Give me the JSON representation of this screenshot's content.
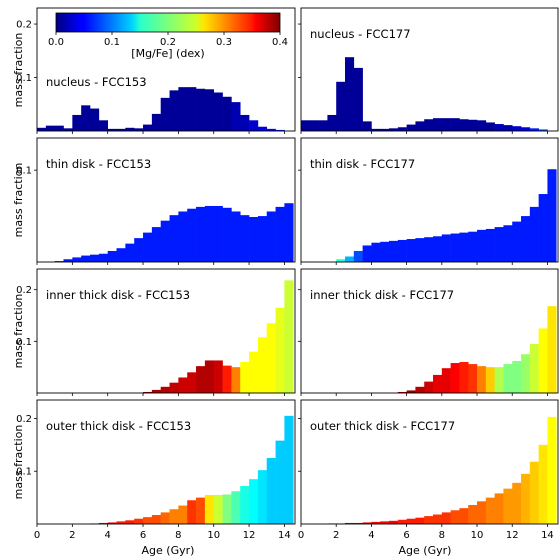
{
  "figure": {
    "colorbar": {
      "label": "[Mg/Fe] (dex)",
      "ticks": [
        "0.0",
        "0.1",
        "0.2",
        "0.3",
        "0.4"
      ],
      "range": [
        0.0,
        0.4
      ],
      "colormap": "jet"
    },
    "x_axis": {
      "label": "Age (Gyr)",
      "ticks": [
        "0",
        "2",
        "4",
        "6",
        "8",
        "10",
        "12",
        "14"
      ],
      "range": [
        0,
        14.6
      ]
    },
    "y_axis_label": "mass fraction"
  },
  "chart_data": [
    {
      "type": "bar",
      "title": "nucleus - FCC153",
      "xlim": [
        0,
        14.6
      ],
      "ylim": [
        0,
        0.23
      ],
      "yticks": [
        "0.1",
        "0.2"
      ],
      "ytick_values": [
        0.1,
        0.2
      ],
      "bin_width": 0.5,
      "x": [
        0.25,
        0.75,
        1.25,
        1.75,
        2.25,
        2.75,
        3.25,
        3.75,
        4.25,
        4.75,
        5.25,
        5.75,
        6.25,
        6.75,
        7.25,
        7.75,
        8.25,
        8.75,
        9.25,
        9.75,
        10.25,
        10.75,
        11.25,
        11.75,
        12.25,
        12.75,
        13.25,
        13.75
      ],
      "values": [
        0.006,
        0.01,
        0.01,
        0.005,
        0.03,
        0.048,
        0.042,
        0.02,
        0.004,
        0.004,
        0.006,
        0.005,
        0.012,
        0.032,
        0.062,
        0.076,
        0.082,
        0.082,
        0.079,
        0.078,
        0.072,
        0.064,
        0.054,
        0.03,
        0.02,
        0.008,
        0.004,
        0.002
      ],
      "mgfe": [
        0.01,
        0.01,
        0.01,
        0.01,
        0.01,
        0.01,
        0.01,
        0.01,
        0.01,
        0.01,
        0.01,
        0.01,
        0.01,
        0.01,
        0.01,
        0.01,
        0.01,
        0.01,
        0.01,
        0.01,
        0.01,
        0.01,
        0.02,
        0.02,
        0.03,
        0.04,
        0.05,
        0.06
      ]
    },
    {
      "type": "bar",
      "title": "nucleus - FCC177",
      "xlim": [
        0,
        14.6
      ],
      "ylim": [
        0,
        0.23
      ],
      "yticks": [],
      "ytick_values": [
        0.1,
        0.2
      ],
      "bin_width": 0.5,
      "x": [
        0.25,
        0.75,
        1.25,
        1.75,
        2.25,
        2.75,
        3.25,
        3.75,
        4.25,
        4.75,
        5.25,
        5.75,
        6.25,
        6.75,
        7.25,
        7.75,
        8.25,
        8.75,
        9.25,
        9.75,
        10.25,
        10.75,
        11.25,
        11.75,
        12.25,
        12.75,
        13.25,
        13.75
      ],
      "values": [
        0.02,
        0.02,
        0.02,
        0.03,
        0.092,
        0.138,
        0.118,
        0.018,
        0.004,
        0.004,
        0.005,
        0.007,
        0.012,
        0.018,
        0.022,
        0.024,
        0.024,
        0.024,
        0.022,
        0.021,
        0.02,
        0.016,
        0.013,
        0.011,
        0.009,
        0.007,
        0.005,
        0.003
      ],
      "mgfe": [
        0.01,
        0.01,
        0.01,
        0.01,
        0.01,
        0.01,
        0.01,
        0.01,
        0.01,
        0.01,
        0.01,
        0.01,
        0.01,
        0.01,
        0.01,
        0.01,
        0.01,
        0.01,
        0.01,
        0.01,
        0.01,
        0.01,
        0.02,
        0.02,
        0.03,
        0.04,
        0.06,
        0.08
      ]
    },
    {
      "type": "bar",
      "title": "thin disk - FCC153",
      "xlim": [
        0,
        14.6
      ],
      "ylim": [
        0,
        0.135
      ],
      "yticks": [
        "0.1"
      ],
      "ytick_values": [
        0.1
      ],
      "bin_width": 0.5,
      "x": [
        0.25,
        0.75,
        1.25,
        1.75,
        2.25,
        2.75,
        3.25,
        3.75,
        4.25,
        4.75,
        5.25,
        5.75,
        6.25,
        6.75,
        7.25,
        7.75,
        8.25,
        8.75,
        9.25,
        9.75,
        10.25,
        10.75,
        11.25,
        11.75,
        12.25,
        12.75,
        13.25,
        13.75,
        14.25
      ],
      "values": [
        0,
        0,
        0.001,
        0.003,
        0.005,
        0.007,
        0.008,
        0.009,
        0.012,
        0.015,
        0.02,
        0.026,
        0.032,
        0.038,
        0.045,
        0.051,
        0.055,
        0.058,
        0.06,
        0.061,
        0.061,
        0.059,
        0.055,
        0.051,
        0.049,
        0.05,
        0.055,
        0.06,
        0.064
      ],
      "mgfe": [
        0.06,
        0.06,
        0.06,
        0.06,
        0.06,
        0.06,
        0.06,
        0.06,
        0.06,
        0.06,
        0.06,
        0.06,
        0.06,
        0.06,
        0.06,
        0.06,
        0.06,
        0.06,
        0.06,
        0.06,
        0.06,
        0.06,
        0.06,
        0.06,
        0.06,
        0.06,
        0.06,
        0.06,
        0.06
      ]
    },
    {
      "type": "bar",
      "title": "thin disk - FCC177",
      "xlim": [
        0,
        14.6
      ],
      "ylim": [
        0,
        0.135
      ],
      "yticks": [],
      "ytick_values": [
        0.1
      ],
      "bin_width": 0.5,
      "x": [
        2.25,
        2.75,
        3.25,
        3.75,
        4.25,
        4.75,
        5.25,
        5.75,
        6.25,
        6.75,
        7.25,
        7.75,
        8.25,
        8.75,
        9.25,
        9.75,
        10.25,
        10.75,
        11.25,
        11.75,
        12.25,
        12.75,
        13.25,
        13.75,
        14.25
      ],
      "values": [
        0.003,
        0.006,
        0.012,
        0.018,
        0.021,
        0.022,
        0.023,
        0.024,
        0.025,
        0.026,
        0.027,
        0.028,
        0.03,
        0.031,
        0.032,
        0.033,
        0.035,
        0.036,
        0.038,
        0.04,
        0.044,
        0.05,
        0.06,
        0.074,
        0.101
      ],
      "mgfe": [
        0.16,
        0.12,
        0.08,
        0.06,
        0.06,
        0.06,
        0.06,
        0.06,
        0.06,
        0.06,
        0.06,
        0.06,
        0.06,
        0.06,
        0.06,
        0.06,
        0.06,
        0.06,
        0.06,
        0.06,
        0.06,
        0.06,
        0.06,
        0.06,
        0.06
      ]
    },
    {
      "type": "bar",
      "title": "inner thick disk - FCC153",
      "xlim": [
        0,
        14.6
      ],
      "ylim": [
        0,
        0.24
      ],
      "yticks": [
        "0.1",
        "0.2"
      ],
      "ytick_values": [
        0.1,
        0.2
      ],
      "bin_width": 0.5,
      "x": [
        6.25,
        6.75,
        7.25,
        7.75,
        8.25,
        8.75,
        9.25,
        9.75,
        10.25,
        10.75,
        11.25,
        11.75,
        12.25,
        12.75,
        13.25,
        13.75,
        14.25
      ],
      "values": [
        0.002,
        0.006,
        0.012,
        0.02,
        0.03,
        0.04,
        0.052,
        0.063,
        0.063,
        0.053,
        0.05,
        0.06,
        0.08,
        0.108,
        0.135,
        0.165,
        0.218
      ],
      "mgfe": [
        0.39,
        0.385,
        0.38,
        0.375,
        0.37,
        0.37,
        0.38,
        0.38,
        0.37,
        0.34,
        0.3,
        0.25,
        0.25,
        0.25,
        0.25,
        0.24,
        0.23
      ]
    },
    {
      "type": "bar",
      "title": "inner thick disk - FCC177",
      "xlim": [
        0,
        14.6
      ],
      "ylim": [
        0,
        0.24
      ],
      "yticks": [],
      "ytick_values": [
        0.1,
        0.2
      ],
      "bin_width": 0.5,
      "x": [
        5.75,
        6.25,
        6.75,
        7.25,
        7.75,
        8.25,
        8.75,
        9.25,
        9.75,
        10.25,
        10.75,
        11.25,
        11.75,
        12.25,
        12.75,
        13.25,
        13.75,
        14.25
      ],
      "values": [
        0.002,
        0.005,
        0.012,
        0.022,
        0.035,
        0.048,
        0.058,
        0.06,
        0.056,
        0.052,
        0.05,
        0.05,
        0.056,
        0.062,
        0.075,
        0.095,
        0.125,
        0.168
      ],
      "mgfe": [
        0.39,
        0.39,
        0.38,
        0.37,
        0.36,
        0.36,
        0.35,
        0.34,
        0.33,
        0.3,
        0.27,
        0.22,
        0.2,
        0.2,
        0.21,
        0.23,
        0.25,
        0.26
      ]
    },
    {
      "type": "bar",
      "title": "outer thick disk - FCC153",
      "xlim": [
        0,
        14.6
      ],
      "ylim": [
        0,
        0.235
      ],
      "yticks": [
        "0.1",
        "0.2"
      ],
      "ytick_values": [
        0.1,
        0.2
      ],
      "bin_width": 0.5,
      "x": [
        3.25,
        3.75,
        4.25,
        4.75,
        5.25,
        5.75,
        6.25,
        6.75,
        7.25,
        7.75,
        8.25,
        8.75,
        9.25,
        9.75,
        10.25,
        10.75,
        11.25,
        11.75,
        12.25,
        12.75,
        13.25,
        13.75,
        14.25
      ],
      "values": [
        0.001,
        0.002,
        0.003,
        0.005,
        0.007,
        0.01,
        0.013,
        0.017,
        0.022,
        0.028,
        0.035,
        0.045,
        0.05,
        0.055,
        0.055,
        0.056,
        0.062,
        0.072,
        0.085,
        0.102,
        0.125,
        0.158,
        0.205
      ],
      "mgfe": [
        0.36,
        0.35,
        0.35,
        0.34,
        0.34,
        0.33,
        0.32,
        0.32,
        0.31,
        0.3,
        0.3,
        0.33,
        0.32,
        0.26,
        0.23,
        0.2,
        0.18,
        0.16,
        0.15,
        0.14,
        0.13,
        0.13,
        0.13
      ]
    },
    {
      "type": "bar",
      "title": "outer thick disk - FCC177",
      "xlim": [
        0,
        14.6
      ],
      "ylim": [
        0,
        0.235
      ],
      "yticks": [],
      "ytick_values": [
        0.1,
        0.2
      ],
      "bin_width": 0.5,
      "x": [
        1.75,
        2.25,
        2.75,
        3.25,
        3.75,
        4.25,
        4.75,
        5.25,
        5.75,
        6.25,
        6.75,
        7.25,
        7.75,
        8.25,
        8.75,
        9.25,
        9.75,
        10.25,
        10.75,
        11.25,
        11.75,
        12.25,
        12.75,
        13.25,
        13.75,
        14.25
      ],
      "values": [
        0.001,
        0.001,
        0.002,
        0.002,
        0.003,
        0.004,
        0.005,
        0.006,
        0.008,
        0.01,
        0.012,
        0.015,
        0.018,
        0.022,
        0.026,
        0.03,
        0.036,
        0.043,
        0.05,
        0.058,
        0.067,
        0.078,
        0.095,
        0.118,
        0.15,
        0.203
      ],
      "mgfe": [
        0.37,
        0.37,
        0.36,
        0.36,
        0.36,
        0.35,
        0.35,
        0.35,
        0.34,
        0.34,
        0.34,
        0.33,
        0.33,
        0.33,
        0.32,
        0.32,
        0.31,
        0.31,
        0.3,
        0.3,
        0.29,
        0.29,
        0.28,
        0.27,
        0.26,
        0.25
      ]
    }
  ]
}
